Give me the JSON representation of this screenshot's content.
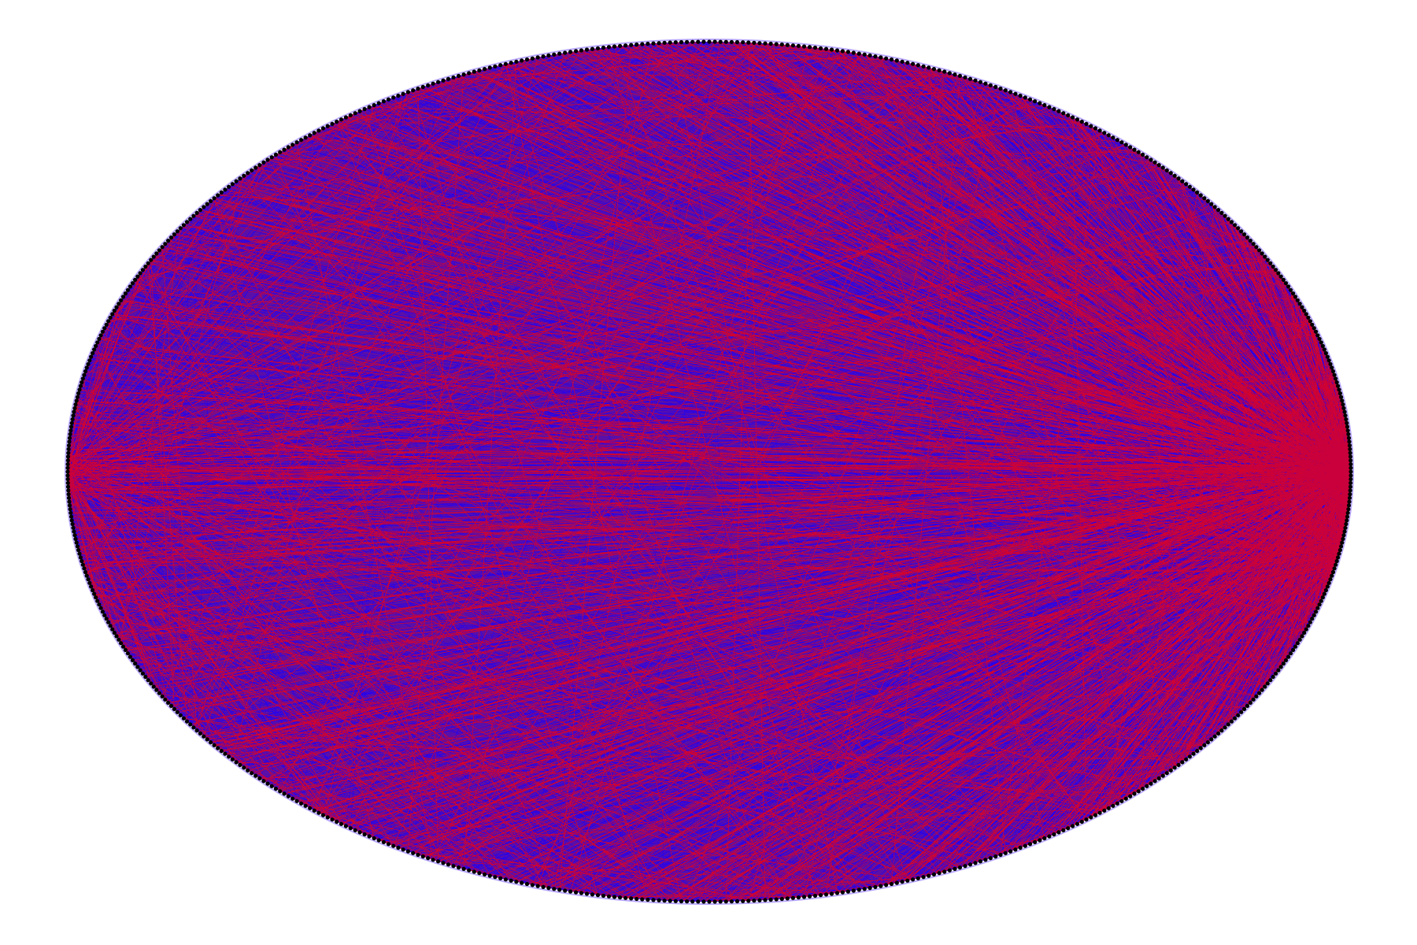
{
  "diagram": {
    "type": "circular-chord-network",
    "node_count": 720,
    "edge_count": 9000,
    "colors": {
      "background": "#ffffff",
      "edge_primary": "#ff0000",
      "edge_secondary": "#1a00ff",
      "node": "#000000",
      "rim_glow": "#b9a8ff"
    },
    "hubs": [
      {
        "position": "right",
        "weight": 0.46
      },
      {
        "position": "lower-right",
        "weight": 0.12
      },
      {
        "position": "left",
        "weight": 0.08
      }
    ]
  }
}
